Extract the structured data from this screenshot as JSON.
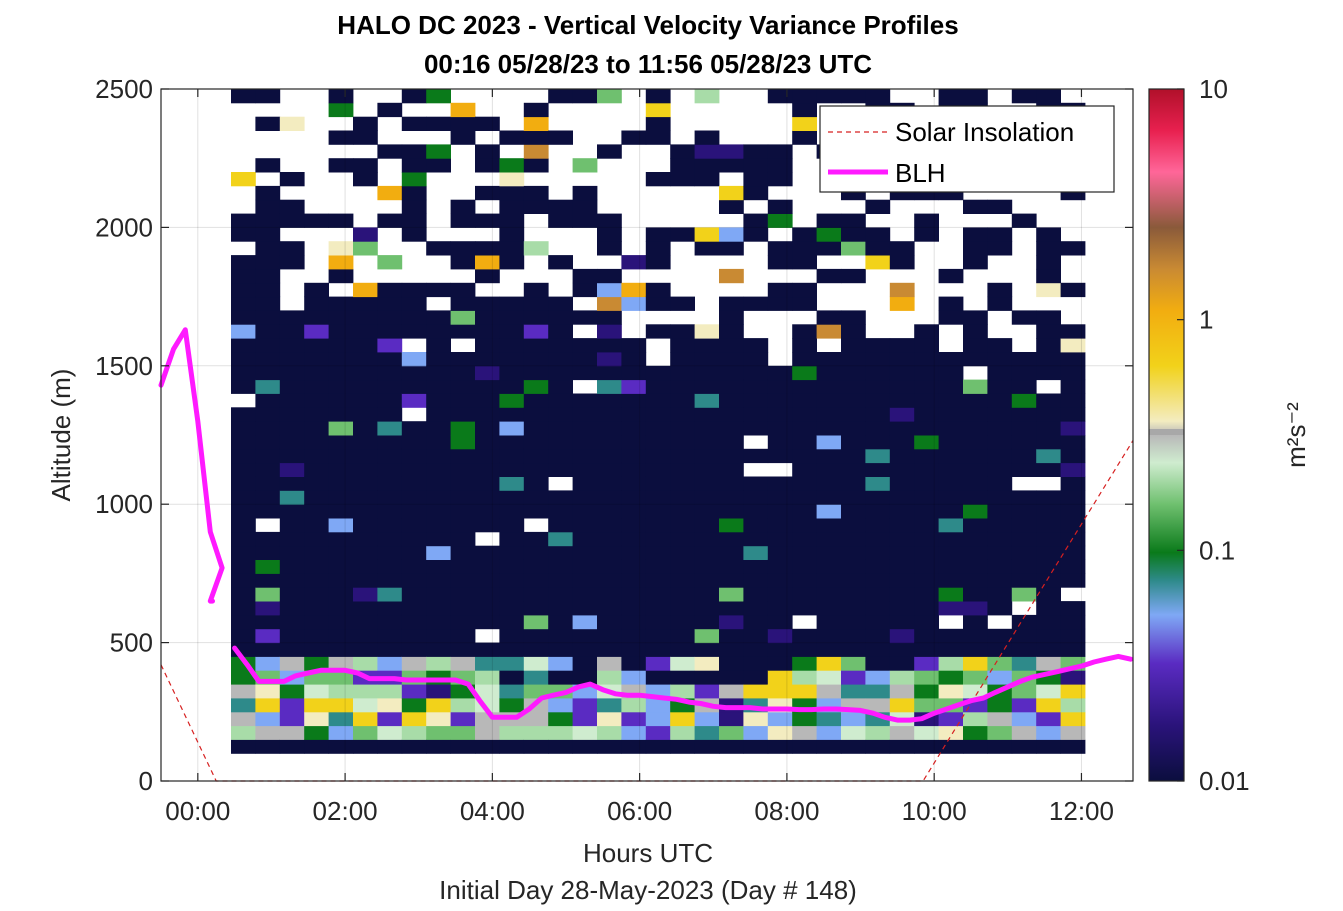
{
  "chart_data": {
    "type": "heatmap",
    "title": "HALO DC 2023 - Vertical Velocity Variance Profiles",
    "subtitle": "00:16 05/28/23 to 11:56 05/28/23  UTC",
    "xlabel": "Hours UTC",
    "xlabel2": "Initial Day 28-May-2023 (Day # 148)",
    "ylabel": "Altitude (m)",
    "colorbar_label": "m²s⁻²",
    "xlim": [
      -0.5,
      12.7
    ],
    "ylim": [
      0,
      2500
    ],
    "x_ticks": [
      0,
      2,
      4,
      6,
      8,
      10,
      12
    ],
    "x_tick_labels": [
      "00:00",
      "02:00",
      "04:00",
      "06:00",
      "08:00",
      "10:00",
      "12:00"
    ],
    "y_ticks": [
      0,
      500,
      1000,
      1500,
      2000,
      2500
    ],
    "y_tick_labels": [
      "0",
      "500",
      "1000",
      "1500",
      "2000",
      "2500"
    ],
    "colorbar": {
      "scale": "log",
      "range": [
        0.01,
        10
      ],
      "ticks": [
        0.01,
        0.1,
        1,
        10
      ],
      "tick_labels": [
        "0.01",
        "0.1",
        "1",
        "10"
      ]
    },
    "grid": true,
    "legend_position": "top-right",
    "series": [
      {
        "name": "Solar Insolation",
        "style": "dashed",
        "color": "#d62020",
        "x": [
          -0.5,
          0.25,
          9.85,
          12.7
        ],
        "y": [
          420,
          0,
          0,
          1230
        ]
      },
      {
        "name": "BLH",
        "style": "solid",
        "color": "#ff1aff",
        "segments": [
          {
            "x": [
              -0.5,
              -0.33,
              -0.17,
              0.0,
              0.17,
              0.33,
              0.17,
              0.2
            ],
            "y": [
              1430,
              1560,
              1630,
              1300,
              900,
              770,
              650,
              650
            ]
          },
          {
            "x": [
              0.5,
              0.67,
              0.83,
              1.0,
              1.17,
              1.33,
              1.5,
              1.67,
              1.83,
              2.0,
              2.17,
              2.33,
              2.5,
              2.67,
              2.83,
              3.0,
              3.17,
              3.33,
              3.5,
              3.67,
              3.83,
              4.0,
              4.17,
              4.33,
              4.5,
              4.67,
              4.83,
              5.0,
              5.17,
              5.33,
              5.5,
              5.67,
              5.83,
              6.0,
              6.17,
              6.33,
              6.5,
              6.67,
              6.83,
              7.0,
              7.17,
              7.33,
              7.5,
              7.67,
              7.83,
              8.0,
              8.17,
              8.33,
              8.5,
              8.67,
              8.83,
              9.0,
              9.17,
              9.33,
              9.5,
              9.67,
              9.83,
              10.0,
              10.17,
              10.33,
              10.5,
              10.67,
              10.83,
              11.0,
              11.17,
              11.33,
              11.5,
              11.67,
              11.83,
              12.0,
              12.17,
              12.33,
              12.5,
              12.67
            ],
            "y": [
              480,
              420,
              360,
              360,
              360,
              380,
              390,
              400,
              400,
              400,
              390,
              370,
              370,
              370,
              365,
              365,
              365,
              365,
              365,
              350,
              290,
              230,
              230,
              230,
              260,
              300,
              310,
              320,
              340,
              350,
              330,
              315,
              310,
              310,
              305,
              300,
              295,
              285,
              280,
              270,
              265,
              265,
              265,
              260,
              260,
              260,
              258,
              258,
              260,
              260,
              258,
              255,
              245,
              230,
              220,
              220,
              225,
              245,
              260,
              275,
              290,
              300,
              320,
              340,
              360,
              375,
              385,
              395,
              405,
              415,
              430,
              440,
              450,
              440
            ]
          }
        ]
      }
    ]
  }
}
